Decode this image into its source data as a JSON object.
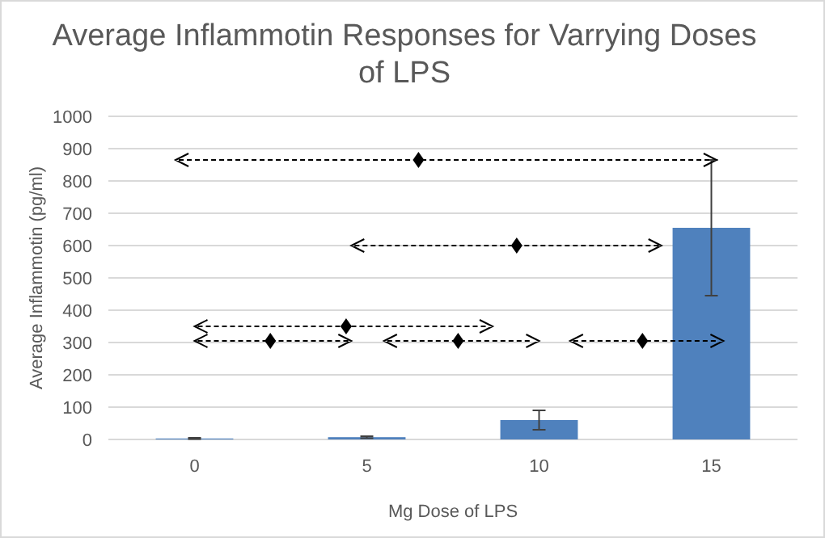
{
  "chart_data": {
    "type": "bar",
    "title": "Average Inflammotin Responses for Varrying Doses of LPS",
    "xlabel": "Mg Dose of LPS",
    "ylabel": "Average  Inflammotin (pg/ml)",
    "categories": [
      "0",
      "5",
      "10",
      "15"
    ],
    "values": [
      3,
      7,
      60,
      655
    ],
    "errors": [
      2,
      3,
      30,
      210
    ],
    "color": "#4f81bd",
    "ylim": [
      0,
      1000
    ],
    "yticks": [
      0,
      100,
      200,
      300,
      400,
      500,
      600,
      700,
      800,
      900,
      1000
    ],
    "grid": "y"
  }
}
